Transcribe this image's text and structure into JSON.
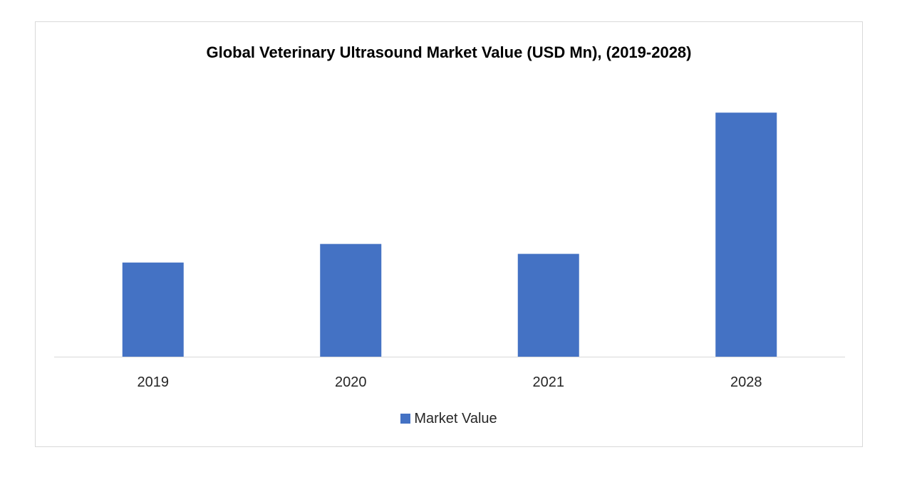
{
  "chart_data": {
    "type": "bar",
    "title": "Global Veterinary Ultrasound  Market Value (USD Mn), (2019-2028)",
    "categories": [
      "2019",
      "2020",
      "2021",
      "2028"
    ],
    "series": [
      {
        "name": "Market Value",
        "values": [
          38.0,
          45.5,
          41.5,
          98.5
        ],
        "color": "#4472c4"
      }
    ],
    "xlabel": "",
    "ylabel": "",
    "ylim": [
      0,
      100
    ],
    "grid": false,
    "legend": "bottom-center"
  }
}
